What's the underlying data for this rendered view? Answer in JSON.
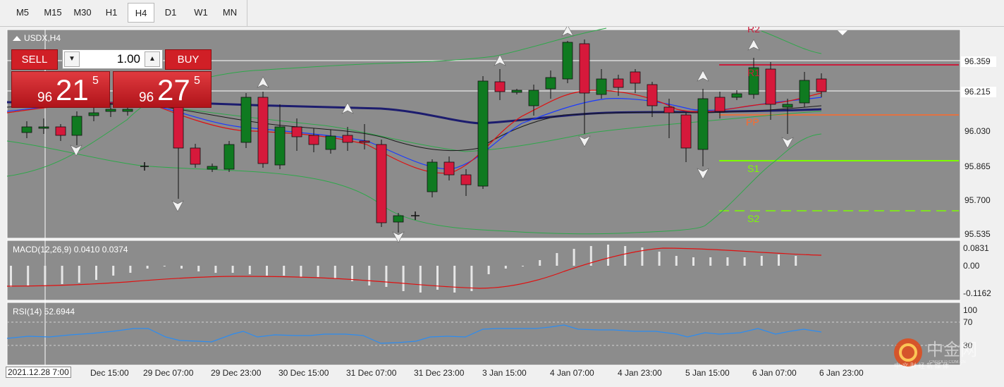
{
  "timeframes": [
    "M5",
    "M15",
    "M30",
    "H1",
    "H4",
    "D1",
    "W1",
    "MN"
  ],
  "active_timeframe": "H4",
  "chart_title": "USDX,H4",
  "trade_panel": {
    "sell_label": "SELL",
    "buy_label": "BUY",
    "lot": "1.00",
    "sell_small": "96",
    "sell_big": "21",
    "sell_sup": "5",
    "buy_small": "96",
    "buy_big": "27",
    "buy_sup": "5"
  },
  "price_axis": [
    "96.359",
    "96.215",
    "96.030",
    "95.865",
    "95.700",
    "95.535"
  ],
  "pivot_labels": {
    "r1": "R1",
    "r2": "R2",
    "pp": "PP",
    "s1": "S1",
    "s2": "S2"
  },
  "macd": {
    "label": "MACD(12,26,9) 0.0410 0.0374",
    "axis": [
      "0.0831",
      "0.00",
      "-0.1162"
    ]
  },
  "rsi": {
    "label": "RSI(14) 52.6944",
    "axis": [
      "100",
      "70",
      "30"
    ]
  },
  "time_axis": [
    "2021.12.28 7:00",
    "Dec 15:00",
    "29 Dec 07:00",
    "29 Dec 23:00",
    "30 Dec 15:00",
    "31 Dec 07:00",
    "31 Dec 23:00",
    "3 Jan 15:00",
    "4 Jan 07:00",
    "4 Jan 23:00",
    "5 Jan 15:00",
    "6 Jan 07:00",
    "6 Jan 23:00"
  ],
  "colors": {
    "bg": "#8c8c8c",
    "bull": "#0f7a20",
    "bear": "#d6193b",
    "pivot_r": "#c81e3c",
    "pivot_pp": "#ff6a2a",
    "pivot_s": "#7cfc00",
    "ma_slow": "#1c1c6e",
    "ma_mid": "#1a1a1a",
    "ma_fast_blue": "#1a3aff",
    "ma_fast_red": "#e01010",
    "bollinger": "#2ea84a",
    "rsi_line": "#2d8cf0",
    "macd_signal": "#e01010"
  },
  "watermark": {
    "brand": "中金网",
    "sub": "中 文 财 经 新 媒 体",
    "url": "CNGOLD.COM.CN"
  }
}
